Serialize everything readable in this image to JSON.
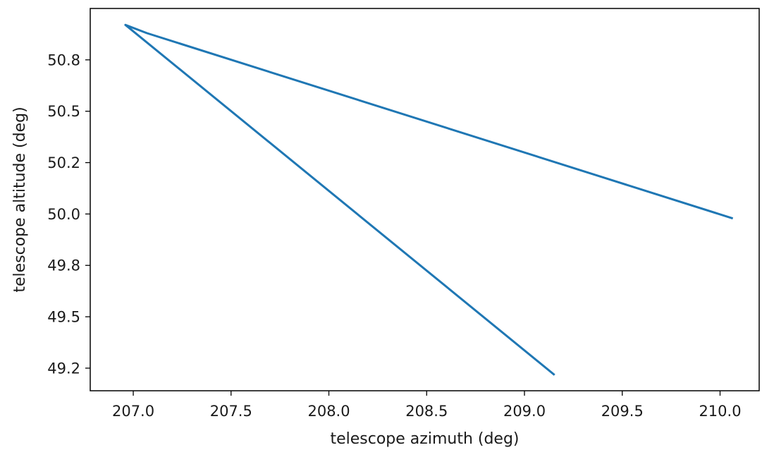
{
  "chart_data": {
    "type": "line",
    "title": "",
    "xlabel": "telescope azimuth (deg)",
    "ylabel": "telescope altitude (deg)",
    "xlim": [
      206.78,
      210.2
    ],
    "ylim": [
      49.14,
      51.0
    ],
    "xticks": [
      207.0,
      207.5,
      208.0,
      208.5,
      209.0,
      209.5,
      210.0
    ],
    "xtick_labels": [
      "207.0",
      "207.5",
      "208.0",
      "208.5",
      "209.0",
      "209.5",
      "210.0"
    ],
    "yticks": [
      49.25,
      49.5,
      49.75,
      50.0,
      50.25,
      50.5,
      50.75
    ],
    "ytick_labels": [
      "49.2",
      "49.5",
      "49.8",
      "50.0",
      "50.2",
      "50.5",
      "50.8"
    ],
    "grid": false,
    "series": [
      {
        "color": "#1f77b4",
        "x": [
          209.15,
          206.96,
          207.07,
          210.06
        ],
        "y": [
          49.22,
          50.92,
          50.88,
          49.98
        ]
      }
    ]
  }
}
